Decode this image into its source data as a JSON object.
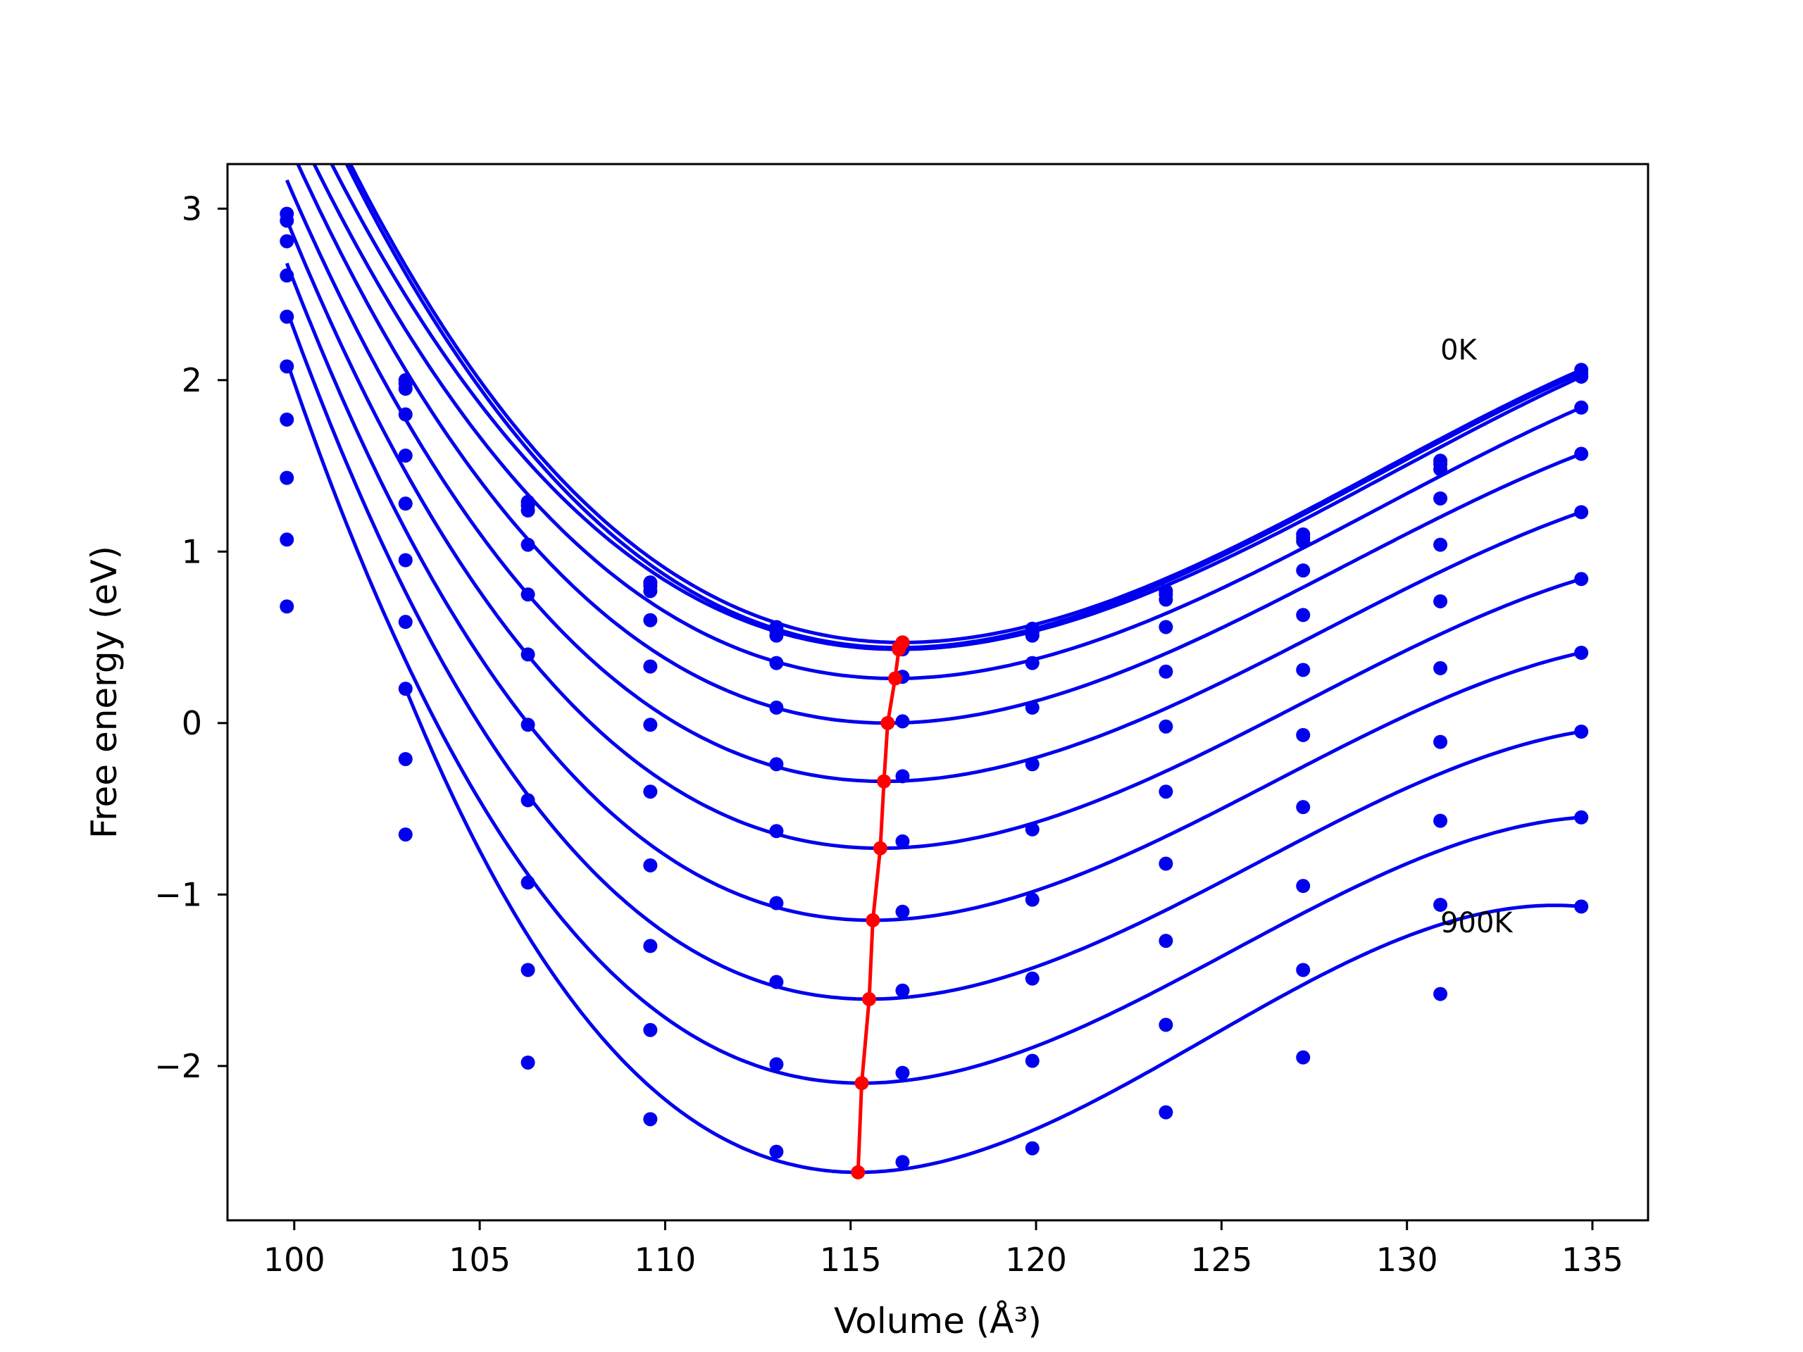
{
  "chart_data": {
    "type": "line",
    "title": "",
    "xlabel": "Volume (Å³)",
    "ylabel": "Free energy (eV)",
    "xlim": [
      98.2,
      136.5
    ],
    "ylim": [
      -2.9,
      3.26
    ],
    "xticks": [
      100,
      105,
      110,
      115,
      120,
      125,
      130,
      135
    ],
    "yticks": [
      -2,
      -1,
      0,
      1,
      2,
      3
    ],
    "xtick_labels": [
      "100",
      "105",
      "110",
      "115",
      "120",
      "125",
      "130",
      "135"
    ],
    "ytick_labels": [
      "−2",
      "−1",
      "0",
      "1",
      "2",
      "3"
    ],
    "grid": false,
    "legend": "none",
    "colors": {
      "curves": "#0000ee",
      "points": "#0000ee",
      "minima": "#ff0000"
    },
    "x": [
      99.8,
      103.0,
      106.3,
      109.6,
      113.0,
      116.4,
      119.9,
      123.5,
      127.2,
      130.9,
      134.7
    ],
    "series": [
      {
        "values": [
          2.97,
          2.0,
          1.29,
          0.82,
          0.56,
          0.47,
          0.55,
          0.77,
          1.1,
          1.53,
          2.06
        ],
        "min": [
          116.4,
          0.47
        ]
      },
      {
        "values": [
          2.93,
          1.98,
          1.27,
          0.8,
          0.54,
          0.45,
          0.53,
          0.75,
          1.08,
          1.51,
          2.04
        ],
        "min": [
          116.3,
          0.44
        ]
      },
      {
        "values": [
          2.81,
          1.95,
          1.24,
          0.77,
          0.51,
          0.43,
          0.51,
          0.72,
          1.06,
          1.48,
          2.02
        ],
        "min": [
          116.3,
          0.43
        ]
      },
      {
        "values": [
          2.61,
          1.8,
          1.04,
          0.6,
          0.35,
          0.27,
          0.35,
          0.56,
          0.89,
          1.31,
          1.84
        ],
        "min": [
          116.2,
          0.26
        ]
      },
      {
        "values": [
          2.37,
          1.56,
          0.75,
          0.33,
          0.09,
          0.01,
          0.09,
          0.3,
          0.63,
          1.04,
          1.57
        ],
        "min": [
          116.0,
          0.0
        ]
      },
      {
        "values": [
          2.08,
          1.28,
          0.4,
          -0.01,
          -0.24,
          -0.31,
          -0.24,
          -0.02,
          0.31,
          0.71,
          1.23
        ],
        "min": [
          115.9,
          -0.34
        ]
      },
      {
        "values": [
          1.77,
          0.95,
          -0.01,
          -0.4,
          -0.63,
          -0.69,
          -0.62,
          -0.4,
          -0.07,
          0.32,
          0.84
        ],
        "min": [
          115.8,
          -0.73
        ]
      },
      {
        "values": [
          1.43,
          0.59,
          -0.45,
          -0.83,
          -1.05,
          -1.1,
          -1.03,
          -0.82,
          -0.49,
          -0.11,
          0.41
        ],
        "min": [
          115.6,
          -1.15
        ]
      },
      {
        "values": [
          1.07,
          0.2,
          -0.93,
          -1.3,
          -1.51,
          -1.56,
          -1.49,
          -1.27,
          -0.95,
          -0.57,
          -0.05
        ],
        "min": [
          115.5,
          -1.61
        ]
      },
      {
        "values": [
          0.68,
          -0.21,
          -1.44,
          -1.79,
          -1.99,
          -2.04,
          -1.97,
          -1.76,
          -1.44,
          -1.06,
          -0.55
        ],
        "min": [
          115.3,
          -2.1
        ]
      },
      {
        "values": [
          null,
          -0.65,
          -1.98,
          -2.31,
          -2.5,
          -2.56,
          -2.48,
          -2.27,
          -1.95,
          -1.58,
          -1.07
        ],
        "min": [
          115.2,
          -2.62
        ]
      }
    ],
    "annotations": [
      {
        "text": "0K",
        "x": 130.9,
        "y": 2.12
      },
      {
        "text": "900K",
        "x": 130.9,
        "y": -1.22
      }
    ]
  }
}
